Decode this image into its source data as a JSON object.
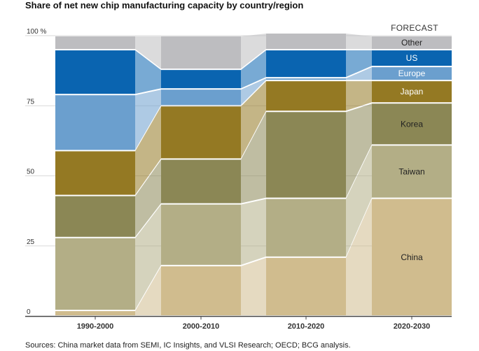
{
  "chart_data": {
    "type": "bar",
    "stacked": true,
    "title": "Share of net new chip manufacturing capacity by country/region",
    "source": "Sources: China market data from SEMI, IC Insights, and VLSI Research; OECD; BCG analysis.",
    "categories": [
      "1990-2000",
      "2000-2010",
      "2010-2020",
      "2020-2030"
    ],
    "annotation": "FORECAST",
    "ylim": [
      0,
      100
    ],
    "yticks": [
      {
        "value": 0,
        "label": "0"
      },
      {
        "value": 25,
        "label": "25"
      },
      {
        "value": 50,
        "label": "50"
      },
      {
        "value": 75,
        "label": "75"
      },
      {
        "value": 100,
        "label": "100 %"
      }
    ],
    "grid": true,
    "series": [
      {
        "name": "China",
        "color": "#d0bc8e",
        "values": [
          2,
          18,
          21,
          42
        ]
      },
      {
        "name": "Taiwan",
        "color": "#b3ae86",
        "values": [
          26,
          22,
          21,
          19
        ]
      },
      {
        "name": "Korea",
        "color": "#8b8755",
        "values": [
          15,
          16,
          31,
          15
        ]
      },
      {
        "name": "Japan",
        "color": "#947923",
        "values": [
          16,
          19,
          11,
          8
        ]
      },
      {
        "name": "Europe",
        "color": "#6b9fce",
        "values": [
          20,
          6,
          1,
          5
        ]
      },
      {
        "name": "US",
        "color": "#0a64b0",
        "values": [
          16,
          7,
          10,
          6
        ]
      },
      {
        "name": "Other",
        "color": "#bdbdc0",
        "values": [
          5,
          12,
          6,
          5
        ]
      }
    ],
    "labelled_category": "2020-2030"
  }
}
